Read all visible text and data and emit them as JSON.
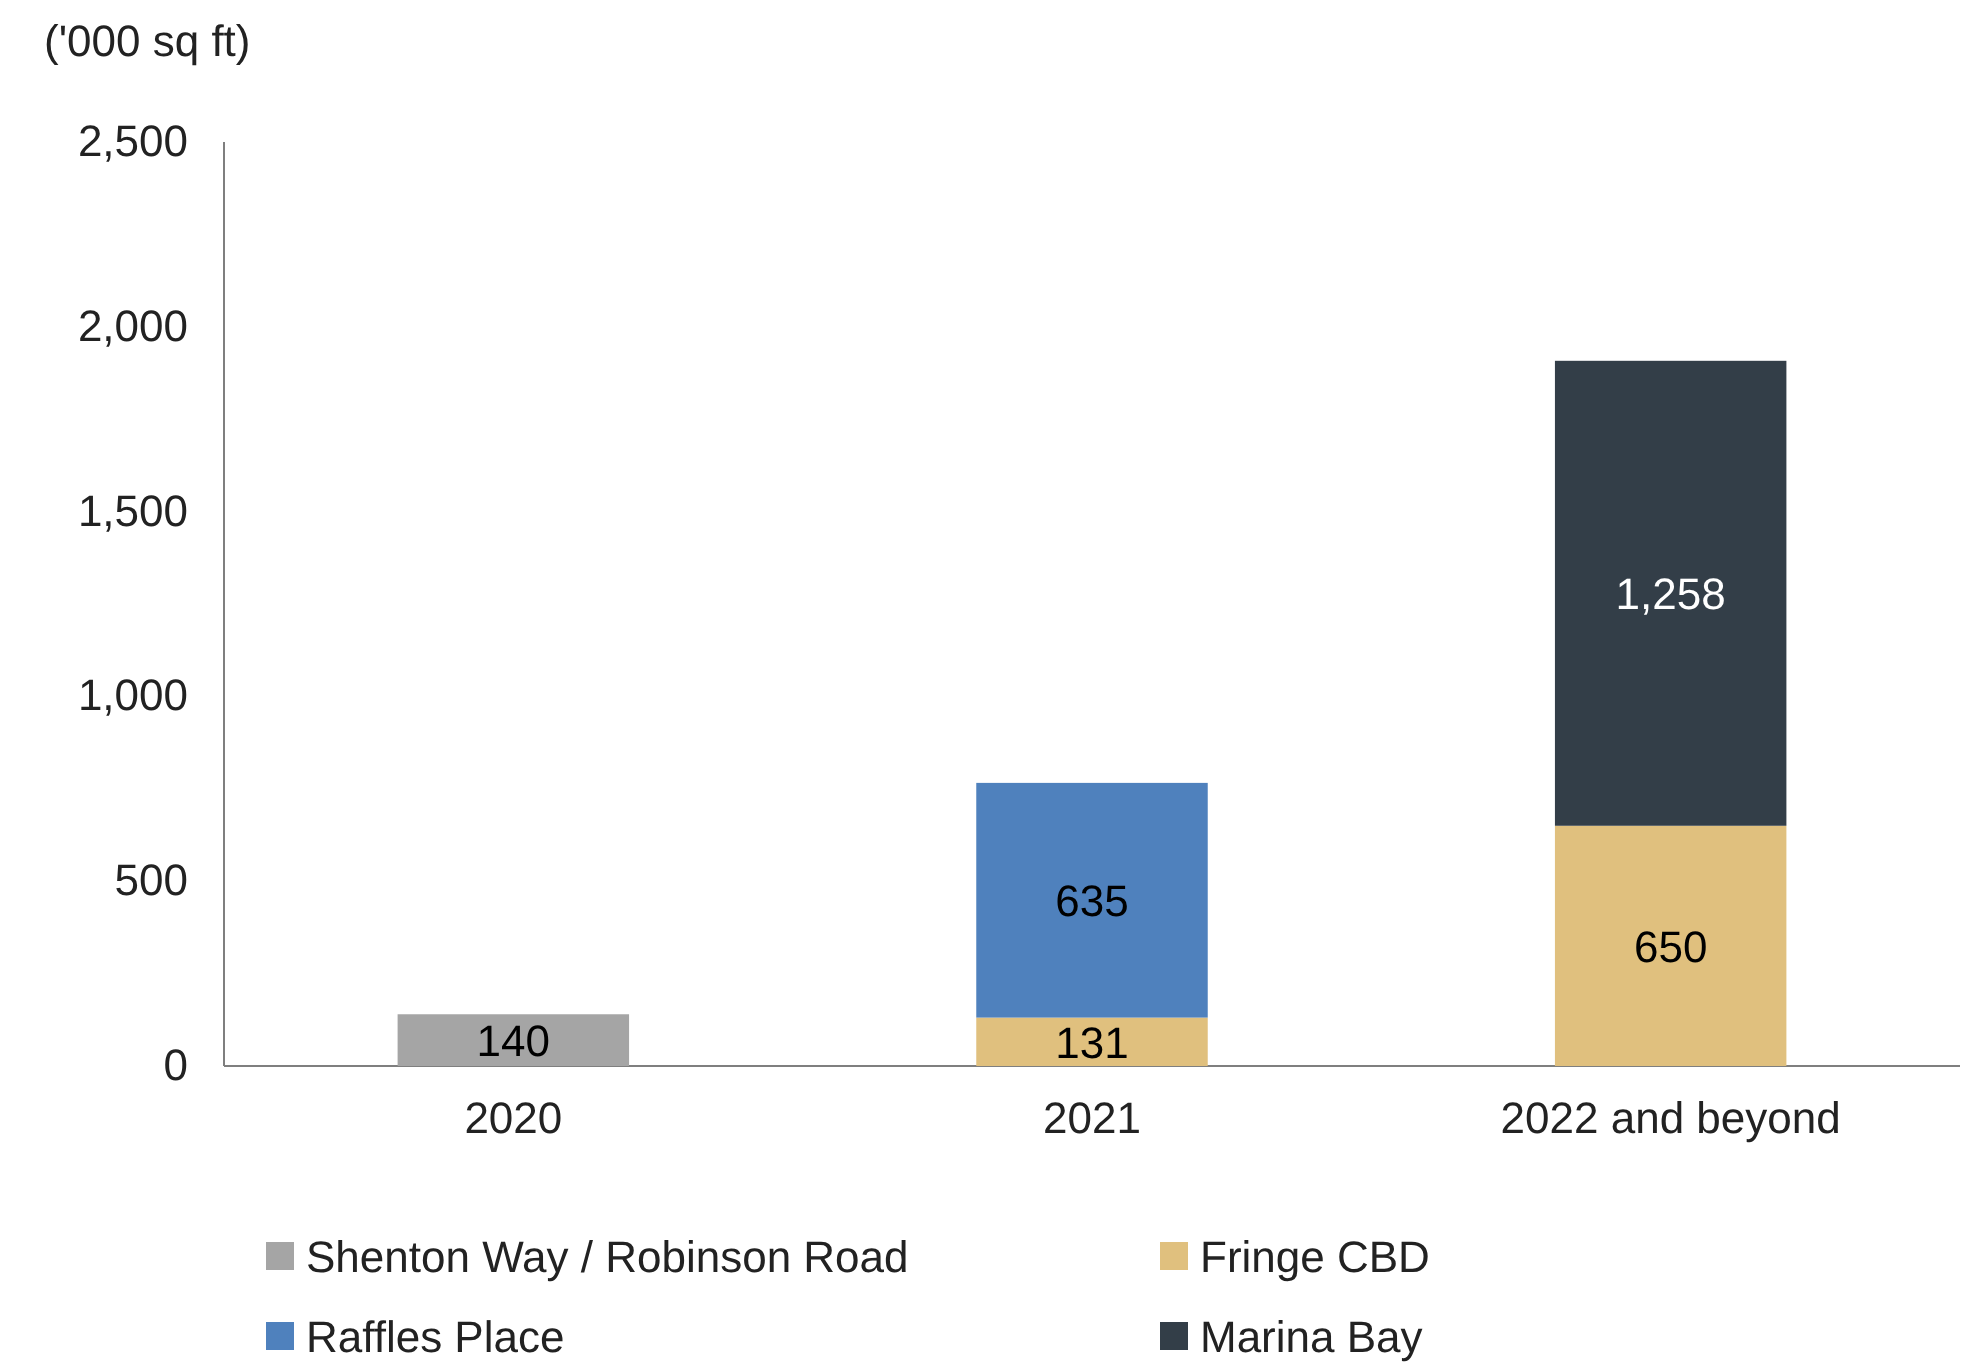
{
  "chart_data": {
    "type": "bar",
    "stacked": true,
    "ylabel": "('000 sq ft)",
    "categories": [
      "2020",
      "2021",
      "2022 and beyond"
    ],
    "series": [
      {
        "name": "Shenton Way / Robinson Road",
        "color": "#a5a5a5",
        "values": [
          140,
          null,
          null
        ],
        "value_labels": [
          "140",
          null,
          null
        ]
      },
      {
        "name": "Fringe CBD",
        "color": "#e0c07e",
        "values": [
          null,
          131,
          650
        ],
        "value_labels": [
          null,
          "131",
          "650"
        ]
      },
      {
        "name": "Raffles Place",
        "color": "#4f81bd",
        "values": [
          null,
          635,
          null
        ],
        "value_labels": [
          null,
          "635",
          null
        ]
      },
      {
        "name": "Marina Bay",
        "color": "#333e48",
        "values": [
          null,
          null,
          1258
        ],
        "value_labels": [
          null,
          null,
          "1,258"
        ]
      }
    ],
    "ylim": [
      0,
      2500
    ],
    "yticks": [
      0,
      500,
      {
        "value": 1000,
        "label": "1,000"
      },
      {
        "value": 1500,
        "label": "1,500"
      },
      {
        "value": 2000,
        "label": "2,000"
      },
      {
        "value": 2500,
        "label": "2,500"
      }
    ],
    "grid": false,
    "legend": "bottom"
  }
}
